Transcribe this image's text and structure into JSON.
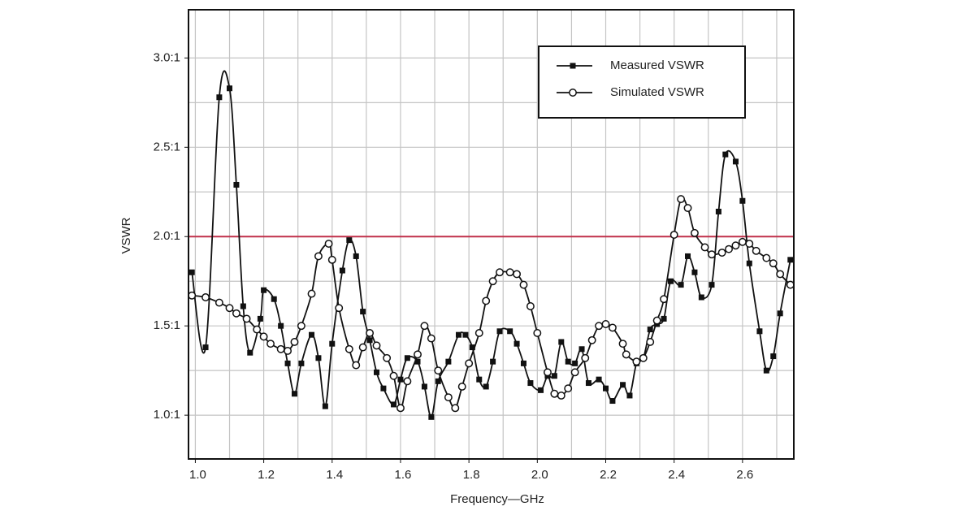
{
  "chart_data": {
    "type": "line",
    "xlabel": "Frequency—GHz",
    "ylabel": "VSWR",
    "xlim": [
      0.98,
      2.75
    ],
    "ylim": [
      0.755,
      3.27
    ],
    "xticks": [
      {
        "value": 1.0,
        "label": "1.0"
      },
      1.2,
      1.4,
      1.6,
      1.8,
      {
        "value": 2.0,
        "label": "2.0"
      },
      2.2,
      2.4,
      2.6
    ],
    "yticks": [
      {
        "value": 1.0,
        "label": "1.0:1"
      },
      {
        "value": 1.5,
        "label": "1.5:1"
      },
      {
        "value": 2.0,
        "label": "2.0:1"
      },
      {
        "value": 2.5,
        "label": "2.5:1"
      },
      {
        "value": 3.0,
        "label": "3.0:1"
      }
    ],
    "x_grid": [
      1.0,
      1.1,
      1.2,
      1.3,
      1.4,
      1.5,
      1.6,
      1.7,
      1.8,
      1.9,
      2.0,
      2.1,
      2.2,
      2.3,
      2.4,
      2.5,
      2.6,
      2.7
    ],
    "y_grid": [
      1.0,
      1.25,
      1.5,
      1.75,
      2.0,
      2.25,
      2.5,
      2.75,
      3.0
    ],
    "grid": true,
    "threshold": {
      "value": 2.0,
      "color": "#c0304a"
    },
    "legend": "upper right",
    "series": [
      {
        "name": "Measured VSWR",
        "color": "#111111",
        "marker": "square",
        "x": [
          0.99,
          1.03,
          1.07,
          1.1,
          1.12,
          1.14,
          1.16,
          1.19,
          1.2,
          1.23,
          1.25,
          1.27,
          1.29,
          1.31,
          1.34,
          1.36,
          1.38,
          1.4,
          1.43,
          1.45,
          1.47,
          1.49,
          1.51,
          1.53,
          1.55,
          1.58,
          1.6,
          1.62,
          1.65,
          1.67,
          1.69,
          1.71,
          1.74,
          1.77,
          1.79,
          1.81,
          1.83,
          1.85,
          1.87,
          1.89,
          1.92,
          1.94,
          1.96,
          1.98,
          2.01,
          2.03,
          2.05,
          2.07,
          2.09,
          2.11,
          2.13,
          2.15,
          2.18,
          2.2,
          2.22,
          2.25,
          2.27,
          2.29,
          2.31,
          2.33,
          2.35,
          2.37,
          2.39,
          2.42,
          2.44,
          2.46,
          2.48,
          2.51,
          2.53,
          2.55,
          2.58,
          2.6,
          2.62,
          2.65,
          2.67,
          2.69,
          2.71,
          2.74
        ],
        "values": [
          1.8,
          1.38,
          2.78,
          2.83,
          2.29,
          1.61,
          1.35,
          1.54,
          1.7,
          1.65,
          1.5,
          1.29,
          1.12,
          1.29,
          1.45,
          1.32,
          1.05,
          1.4,
          1.81,
          1.98,
          1.89,
          1.58,
          1.42,
          1.24,
          1.15,
          1.06,
          1.2,
          1.32,
          1.3,
          1.16,
          0.99,
          1.19,
          1.3,
          1.45,
          1.45,
          1.38,
          1.2,
          1.16,
          1.3,
          1.47,
          1.47,
          1.4,
          1.29,
          1.18,
          1.14,
          1.22,
          1.22,
          1.41,
          1.3,
          1.29,
          1.37,
          1.18,
          1.2,
          1.15,
          1.08,
          1.17,
          1.11,
          1.29,
          1.32,
          1.48,
          1.51,
          1.54,
          1.75,
          1.73,
          1.89,
          1.8,
          1.66,
          1.73,
          2.14,
          2.46,
          2.42,
          2.2,
          1.85,
          1.47,
          1.25,
          1.33,
          1.57,
          1.87
        ]
      },
      {
        "name": "Simulated VSWR",
        "color": "#111111",
        "marker": "circle",
        "x": [
          0.99,
          1.03,
          1.07,
          1.1,
          1.12,
          1.15,
          1.18,
          1.2,
          1.22,
          1.25,
          1.27,
          1.29,
          1.31,
          1.34,
          1.36,
          1.39,
          1.4,
          1.42,
          1.45,
          1.47,
          1.49,
          1.51,
          1.53,
          1.56,
          1.58,
          1.6,
          1.62,
          1.65,
          1.67,
          1.69,
          1.71,
          1.74,
          1.76,
          1.78,
          1.8,
          1.83,
          1.85,
          1.87,
          1.89,
          1.92,
          1.94,
          1.96,
          1.98,
          2.0,
          2.03,
          2.05,
          2.07,
          2.09,
          2.11,
          2.14,
          2.16,
          2.18,
          2.2,
          2.22,
          2.25,
          2.26,
          2.29,
          2.31,
          2.33,
          2.35,
          2.37,
          2.4,
          2.42,
          2.44,
          2.46,
          2.49,
          2.51,
          2.54,
          2.56,
          2.58,
          2.6,
          2.62,
          2.64,
          2.67,
          2.69,
          2.71,
          2.74
        ],
        "values": [
          1.67,
          1.66,
          1.63,
          1.6,
          1.57,
          1.54,
          1.48,
          1.44,
          1.4,
          1.37,
          1.36,
          1.41,
          1.5,
          1.68,
          1.89,
          1.96,
          1.87,
          1.6,
          1.37,
          1.28,
          1.38,
          1.46,
          1.39,
          1.32,
          1.22,
          1.04,
          1.19,
          1.34,
          1.5,
          1.43,
          1.25,
          1.1,
          1.04,
          1.16,
          1.29,
          1.46,
          1.64,
          1.75,
          1.8,
          1.8,
          1.79,
          1.73,
          1.61,
          1.46,
          1.24,
          1.12,
          1.11,
          1.15,
          1.24,
          1.32,
          1.42,
          1.5,
          1.51,
          1.49,
          1.4,
          1.34,
          1.3,
          1.32,
          1.41,
          1.53,
          1.65,
          2.01,
          2.21,
          2.16,
          2.02,
          1.94,
          1.9,
          1.91,
          1.93,
          1.95,
          1.97,
          1.96,
          1.92,
          1.88,
          1.85,
          1.79,
          1.73
        ]
      }
    ]
  }
}
